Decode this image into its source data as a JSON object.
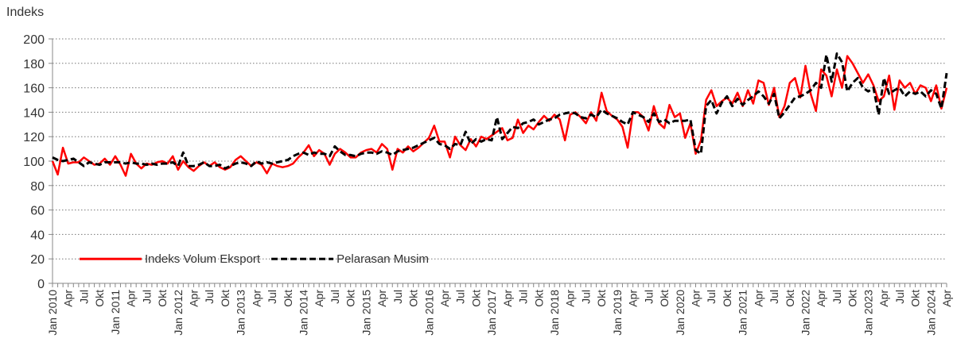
{
  "chart_data": {
    "type": "line",
    "y_label": "Indeks",
    "categories": [
      "Jan 2010",
      null,
      null,
      "Apr",
      null,
      null,
      "Jul",
      null,
      null,
      "Okt",
      null,
      null,
      "Jan 2011",
      null,
      null,
      "Apr",
      null,
      null,
      "Jul",
      null,
      null,
      "Okt",
      null,
      null,
      "Jan 2012",
      null,
      null,
      "Apr",
      null,
      null,
      "Jul",
      null,
      null,
      "Okt",
      null,
      null,
      "Jan 2013",
      null,
      null,
      "Apr",
      null,
      null,
      "Jul",
      null,
      null,
      "Okt",
      null,
      null,
      "Jan 2014",
      null,
      null,
      "Apr",
      null,
      null,
      "Jul",
      null,
      null,
      "Okt",
      null,
      null,
      "Jan 2015",
      null,
      null,
      "Apr",
      null,
      null,
      "Jul",
      null,
      null,
      "Okt",
      null,
      null,
      "Jan 2016",
      null,
      null,
      "Apr",
      null,
      null,
      "Jul",
      null,
      null,
      "Okt",
      null,
      null,
      "Jan 2017",
      null,
      null,
      "Apr",
      null,
      null,
      "Jul",
      null,
      null,
      "Okt",
      null,
      null,
      "Jan 2018",
      null,
      null,
      "Apr",
      null,
      null,
      "Jul",
      null,
      null,
      "Okt",
      null,
      null,
      "Jan 2019",
      null,
      null,
      "Apr",
      null,
      null,
      "Jul",
      null,
      null,
      "Okt",
      null,
      null,
      "Jan 2020",
      null,
      null,
      "Apr",
      null,
      null,
      "Jul",
      null,
      null,
      "Okt",
      null,
      null,
      "Jan 2021",
      null,
      null,
      "Apr",
      null,
      null,
      "Jul",
      null,
      null,
      "Okt",
      null,
      null,
      "Jan 2022",
      null,
      null,
      "Apr",
      null,
      null,
      "Jul",
      null,
      null,
      "Okt",
      null,
      null,
      "Jan 2023",
      null,
      null,
      "Apr",
      null,
      null,
      "Jul",
      null,
      null,
      "Okt",
      null,
      null,
      "Jan 2024",
      null,
      null,
      "Apr"
    ],
    "series": [
      {
        "name": "Indeks Volum Eksport",
        "color": "#ff0000",
        "dashed": false,
        "values": [
          100,
          89,
          111,
          98,
          99,
          99,
          103,
          100,
          97,
          98,
          102,
          97,
          104,
          97,
          88,
          106,
          98,
          94,
          98,
          97,
          99,
          100,
          98,
          104,
          93,
          100,
          95,
          92,
          96,
          99,
          96,
          99,
          95,
          93,
          95,
          101,
          104,
          100,
          96,
          99,
          97,
          90,
          98,
          96,
          95,
          96,
          98,
          103,
          107,
          113,
          104,
          109,
          106,
          97,
          106,
          110,
          107,
          103,
          103,
          107,
          109,
          110,
          107,
          114,
          110,
          93,
          110,
          107,
          112,
          108,
          111,
          115,
          119,
          129,
          116,
          116,
          103,
          120,
          113,
          109,
          118,
          112,
          120,
          118,
          121,
          124,
          127,
          117,
          119,
          134,
          123,
          129,
          126,
          132,
          137,
          133,
          138,
          134,
          117,
          138,
          140,
          136,
          131,
          140,
          133,
          156,
          141,
          137,
          134,
          128,
          111,
          140,
          140,
          136,
          125,
          145,
          131,
          127,
          146,
          136,
          139,
          119,
          131,
          106,
          117,
          150,
          158,
          145,
          149,
          152,
          147,
          156,
          145,
          158,
          147,
          166,
          164,
          146,
          160,
          136,
          145,
          164,
          168,
          152,
          178,
          155,
          141,
          175,
          170,
          153,
          175,
          160,
          186,
          180,
          172,
          164,
          171,
          162,
          149,
          153,
          170,
          142,
          166,
          160,
          164,
          155,
          162,
          160,
          149,
          162,
          143,
          160
        ]
      },
      {
        "name": "Pelarasan Musim",
        "color": "#000000",
        "dashed": true,
        "values": [
          103,
          101,
          100,
          101,
          102,
          99,
          96,
          99,
          98,
          97,
          99,
          99,
          99,
          99,
          98,
          99,
          98,
          98,
          97,
          98,
          97,
          98,
          98,
          99,
          96,
          107,
          96,
          96,
          97,
          99,
          96,
          96,
          97,
          94,
          96,
          98,
          99,
          98,
          96,
          100,
          98,
          99,
          98,
          99,
          100,
          101,
          104,
          106,
          107,
          105,
          107,
          106,
          106,
          104,
          112,
          108,
          105,
          105,
          104,
          106,
          107,
          107,
          106,
          108,
          107,
          105,
          108,
          109,
          110,
          111,
          113,
          115,
          117,
          119,
          114,
          113,
          110,
          114,
          113,
          124,
          114,
          118,
          116,
          118,
          117,
          136,
          118,
          123,
          128,
          127,
          131,
          132,
          134,
          130,
          132,
          134,
          135,
          138,
          139,
          140,
          139,
          136,
          135,
          138,
          136,
          142,
          139,
          137,
          135,
          132,
          130,
          140,
          138,
          136,
          132,
          139,
          132,
          134,
          131,
          133,
          133,
          133,
          134,
          109,
          106,
          145,
          150,
          139,
          148,
          153,
          145,
          151,
          146,
          150,
          153,
          157,
          153,
          147,
          155,
          135,
          140,
          146,
          152,
          153,
          155,
          158,
          164,
          160,
          187,
          165,
          188,
          181,
          157,
          164,
          168,
          160,
          157,
          160,
          138,
          168,
          155,
          158,
          160,
          153,
          157,
          155,
          157,
          153,
          158,
          155,
          143,
          172
        ]
      }
    ],
    "ylim": [
      0,
      200
    ],
    "yticks": [
      0,
      20,
      40,
      60,
      80,
      100,
      120,
      140,
      160,
      180,
      200
    ],
    "grid": true,
    "legend": "lower left"
  }
}
